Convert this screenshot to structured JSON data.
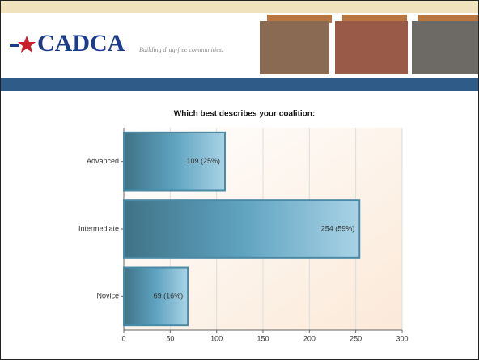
{
  "header": {
    "logo": "CADCA",
    "tagline": "Building drug-free communities."
  },
  "chart_data": {
    "type": "barh",
    "title": "Which best describes your coalition:",
    "categories": [
      "Advanced",
      "Intermediate",
      "Novice"
    ],
    "values": [
      109,
      254,
      69
    ],
    "value_labels": [
      "109 (25%)",
      "254 (59%)",
      "69 (16%)"
    ],
    "color": "#5fa3c0",
    "xlim": [
      0,
      300
    ],
    "xticks": [
      0,
      50,
      100,
      150,
      200,
      250,
      300
    ],
    "grid": true
  }
}
